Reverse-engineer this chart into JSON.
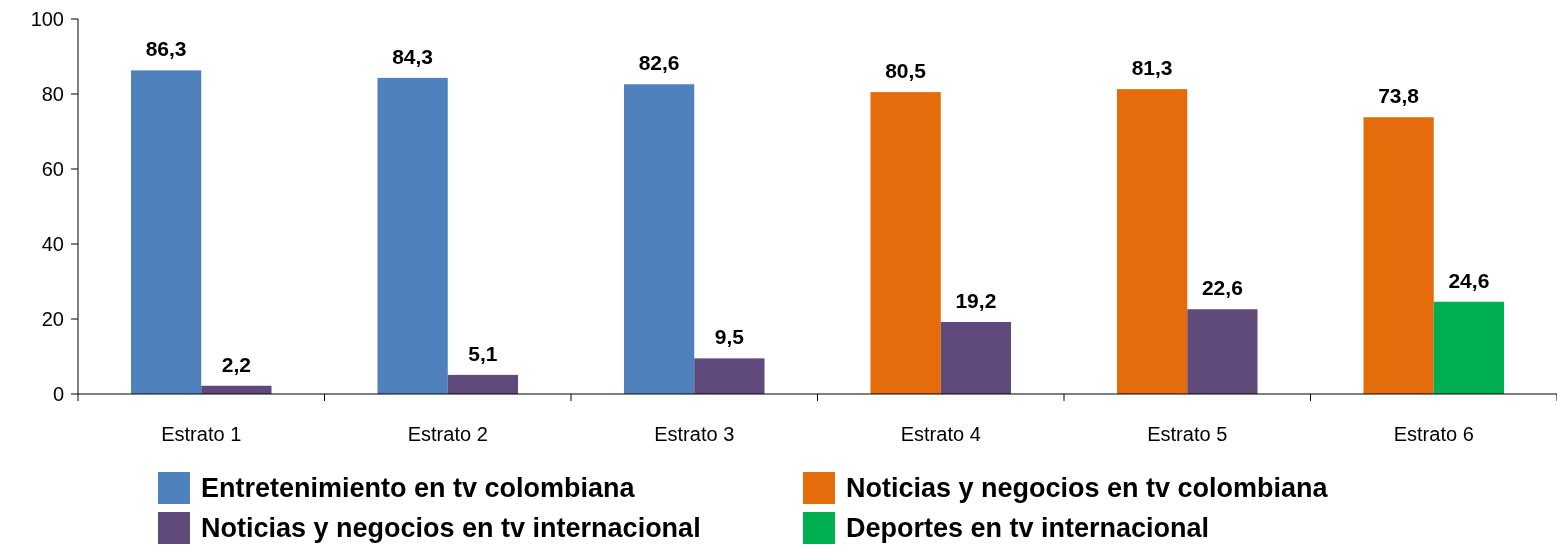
{
  "chart_data": {
    "type": "bar",
    "categories": [
      "Estrato 1",
      "Estrato 2",
      "Estrato 3",
      "Estrato 4",
      "Estrato 5",
      "Estrato 6"
    ],
    "series": [
      {
        "name": "Entretenimiento en tv colombiana",
        "color": "#4f81bd",
        "values": [
          86.3,
          84.3,
          82.6,
          null,
          null,
          null
        ],
        "value_labels": [
          "86,3",
          "84,3",
          "82,6",
          null,
          null,
          null
        ]
      },
      {
        "name": "Noticias y negocios en tv colombiana",
        "color": "#e46c0a",
        "values": [
          null,
          null,
          null,
          80.5,
          81.3,
          73.8
        ],
        "value_labels": [
          null,
          null,
          null,
          "80,5",
          "81,3",
          "73,8"
        ]
      },
      {
        "name": "Noticias y negocios en tv internacional",
        "color": "#604a7b",
        "values": [
          2.2,
          5.1,
          9.5,
          19.2,
          22.6,
          null
        ],
        "value_labels": [
          "2,2",
          "5,1",
          "9,5",
          "19,2",
          "22,6",
          null
        ]
      },
      {
        "name": "Deportes en tv internacional",
        "color": "#00b050",
        "values": [
          null,
          null,
          null,
          null,
          null,
          24.6
        ],
        "value_labels": [
          null,
          null,
          null,
          null,
          null,
          "24,6"
        ]
      }
    ],
    "ylim": [
      0,
      100
    ],
    "yticks": [
      0,
      20,
      40,
      60,
      80,
      100
    ],
    "grid": false,
    "legend": "bottom"
  }
}
